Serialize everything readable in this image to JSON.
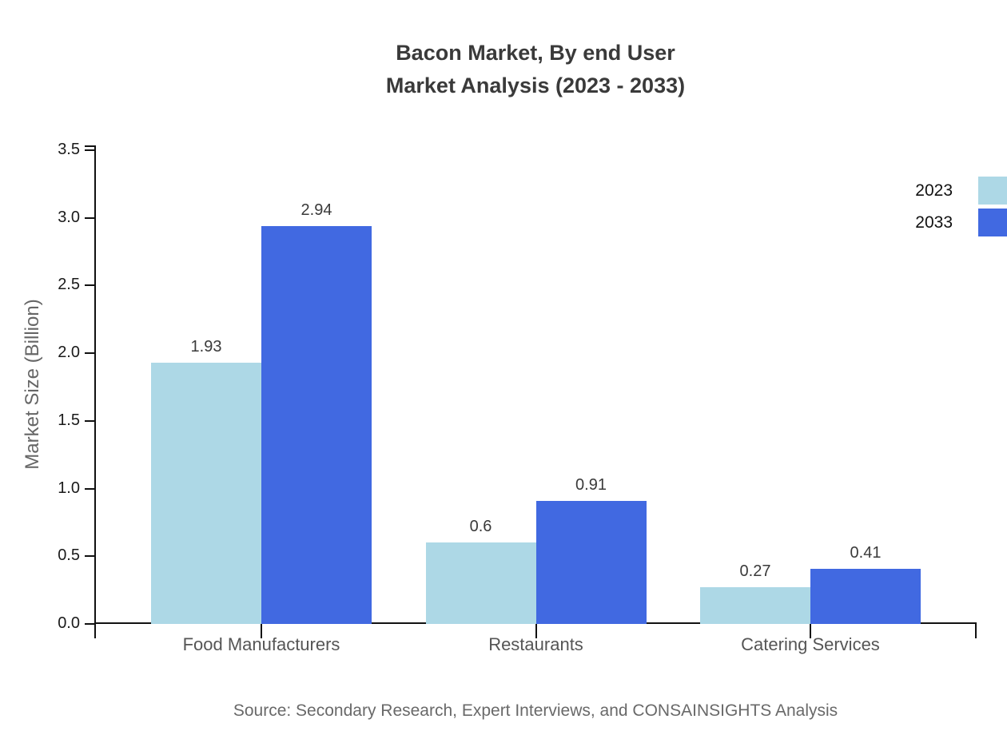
{
  "title": "Bacon Market, By end User\nMarket Analysis (2023 - 2033)",
  "source": "Source: Secondary Research, Expert Interviews, and CONSAINSIGHTS Analysis",
  "chart_data": {
    "type": "bar",
    "title": "Bacon Market, By end User Market Analysis (2023 - 2033)",
    "categories": [
      "Food Manufacturers",
      "Restaurants",
      "Catering Services"
    ],
    "series": [
      {
        "name": "2023",
        "color": "#ADD8E6",
        "values": [
          1.93,
          0.6,
          0.27
        ],
        "labels": [
          "1.93",
          "0.6",
          "0.27"
        ]
      },
      {
        "name": "2033",
        "color": "#4169E1",
        "values": [
          2.94,
          0.91,
          0.41
        ],
        "labels": [
          "2.94",
          "0.91",
          "0.41"
        ]
      }
    ],
    "xlabel": "",
    "ylabel": "Market Size (Billion)",
    "ylim": [
      0,
      3.5
    ],
    "yticks": [
      "0.0",
      "0.5",
      "1.0",
      "1.5",
      "2.0",
      "2.5",
      "3.0",
      "3.5"
    ],
    "grid": false,
    "legend_position": "top-right",
    "axis_color": "#111111",
    "background_color": "#ffffff"
  }
}
